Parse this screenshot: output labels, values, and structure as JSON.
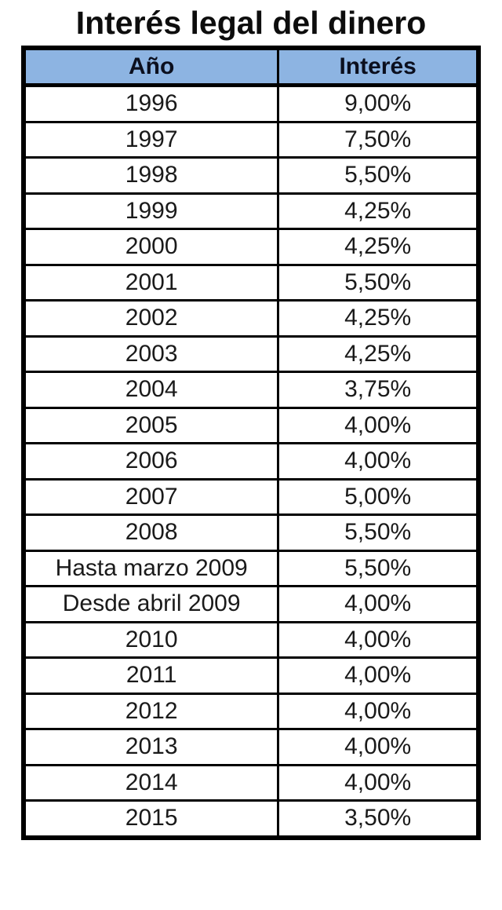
{
  "page_title": "Interés legal del dinero",
  "table": {
    "headers": {
      "year": "Año",
      "interest": "Interés"
    },
    "rows": [
      {
        "period": "1996",
        "rate": "9,00%"
      },
      {
        "period": "1997",
        "rate": "7,50%"
      },
      {
        "period": "1998",
        "rate": "5,50%"
      },
      {
        "period": "1999",
        "rate": "4,25%"
      },
      {
        "period": "2000",
        "rate": "4,25%"
      },
      {
        "period": "2001",
        "rate": "5,50%"
      },
      {
        "period": "2002",
        "rate": "4,25%"
      },
      {
        "period": "2003",
        "rate": "4,25%"
      },
      {
        "period": "2004",
        "rate": "3,75%"
      },
      {
        "period": "2005",
        "rate": "4,00%"
      },
      {
        "period": "2006",
        "rate": "4,00%"
      },
      {
        "period": "2007",
        "rate": "5,00%"
      },
      {
        "period": "2008",
        "rate": "5,50%"
      },
      {
        "period": "Hasta marzo 2009",
        "rate": "5,50%"
      },
      {
        "period": "Desde abril 2009",
        "rate": "4,00%"
      },
      {
        "period": "2010",
        "rate": "4,00%"
      },
      {
        "period": "2011",
        "rate": "4,00%"
      },
      {
        "period": "2012",
        "rate": "4,00%"
      },
      {
        "period": "2013",
        "rate": "4,00%"
      },
      {
        "period": "2014",
        "rate": "4,00%"
      },
      {
        "period": "2015",
        "rate": "3,50%"
      }
    ]
  },
  "colors": {
    "header_bg": "#8DB4E2",
    "border": "#000000",
    "cell_bg": "#FFFFFF",
    "text": "#000000"
  },
  "chart_data": {
    "type": "table",
    "title": "Interés legal del dinero",
    "columns": [
      "Año",
      "Interés"
    ],
    "categories": [
      "1996",
      "1997",
      "1998",
      "1999",
      "2000",
      "2001",
      "2002",
      "2003",
      "2004",
      "2005",
      "2006",
      "2007",
      "2008",
      "Hasta marzo 2009",
      "Desde abril 2009",
      "2010",
      "2011",
      "2012",
      "2013",
      "2014",
      "2015"
    ],
    "values_percent": [
      9.0,
      7.5,
      5.5,
      4.25,
      4.25,
      5.5,
      4.25,
      4.25,
      3.75,
      4.0,
      4.0,
      5.0,
      5.5,
      5.5,
      4.0,
      4.0,
      4.0,
      4.0,
      4.0,
      4.0,
      3.5
    ],
    "value_format": "es-ES comma decimal, percent",
    "legend": "none",
    "grid": "full table borders"
  }
}
